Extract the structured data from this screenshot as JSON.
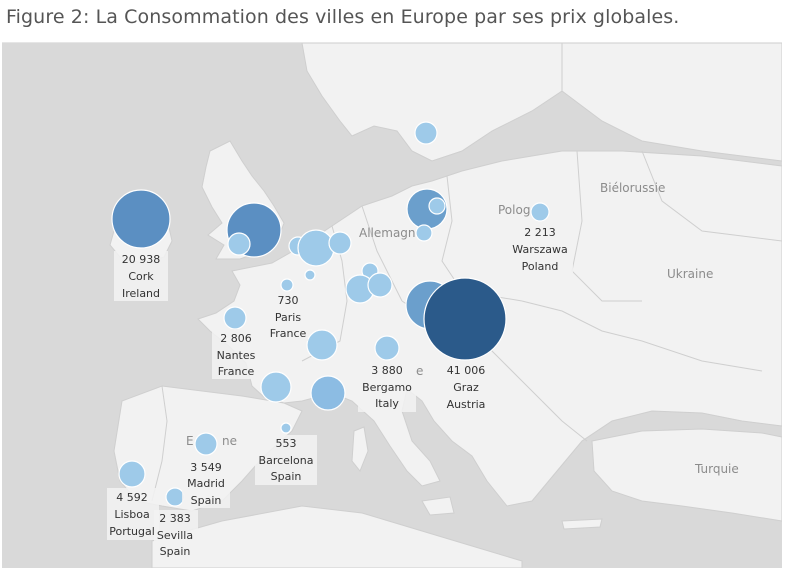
{
  "title": "Figure 2: La Consommation des villes en Europe par ses prix globales.",
  "colors": {
    "sea": "#d9d9d9",
    "land": "#f2f2f2",
    "border": "#cfcfcf",
    "bubble_light": "#9ecae9",
    "bubble_dark": "#2b5a8a"
  },
  "countries": [
    {
      "id": "bielorussie",
      "text": "Biélorussie"
    },
    {
      "id": "ukraine",
      "text": "Ukraine"
    },
    {
      "id": "turquie",
      "text": "Turquie"
    },
    {
      "id": "allemagne",
      "text": "Allemagn"
    },
    {
      "id": "pologne",
      "text": "Polog"
    },
    {
      "id": "espagne-e",
      "text": "E"
    },
    {
      "id": "espagne-ne",
      "text": "ne"
    },
    {
      "id": "italie-e",
      "text": "e"
    }
  ],
  "cities": [
    {
      "id": "cork",
      "value": "20 938",
      "city": "Cork",
      "country": "Ireland"
    },
    {
      "id": "warszawa",
      "value": "2 213",
      "city": "Warszawa",
      "country": "Poland"
    },
    {
      "id": "paris",
      "value": "730",
      "city": "Paris",
      "country": "France"
    },
    {
      "id": "nantes",
      "value": "2 806",
      "city": "Nantes",
      "country": "France"
    },
    {
      "id": "bergamo",
      "value": "3 880",
      "city": "Bergamo",
      "country": "Italy"
    },
    {
      "id": "graz",
      "value": "41 006",
      "city": "Graz",
      "country": "Austria"
    },
    {
      "id": "barcelona",
      "value": "553",
      "city": "Barcelona",
      "country": "Spain"
    },
    {
      "id": "madrid",
      "value": "3 549",
      "city": "Madrid",
      "country": "Spain"
    },
    {
      "id": "lisboa",
      "value": "4 592",
      "city": "Lisboa",
      "country": "Portugal"
    },
    {
      "id": "sevilla",
      "value": "2 383",
      "city": "Sevilla",
      "country": "Spain"
    }
  ]
}
